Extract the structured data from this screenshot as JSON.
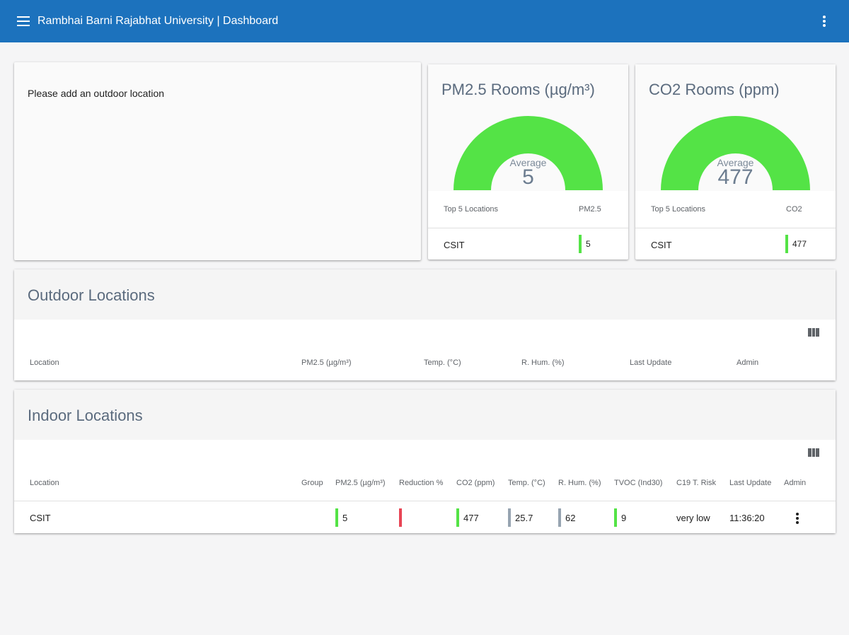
{
  "appbar": {
    "title": "Rambhai Barni Rajabhat University | Dashboard",
    "menu_icon": "hamburger-menu-icon",
    "more_icon": "more-vert-icon"
  },
  "outdoor_notice": {
    "message": "Please add an outdoor location"
  },
  "gauges": {
    "pm25": {
      "title": "PM2.5 Rooms (µg/m³)",
      "avg_label": "Average",
      "avg_value": "5",
      "top_label": "Top 5 Locations",
      "metric_label": "PM2.5",
      "rows": [
        {
          "location": "CSIT",
          "value": "5"
        }
      ],
      "color": "#54e346"
    },
    "co2": {
      "title": "CO2 Rooms (ppm)",
      "avg_label": "Average",
      "avg_value": "477",
      "top_label": "Top 5 Locations",
      "metric_label": "CO2",
      "rows": [
        {
          "location": "CSIT",
          "value": "477"
        }
      ],
      "color": "#54e346"
    }
  },
  "outdoor_section": {
    "title": "Outdoor Locations",
    "columns_icon": "view-column-icon",
    "columns": [
      "Location",
      "PM2.5 (µg/m³)",
      "Temp. (°C)",
      "R. Hum. (%)",
      "Last Update",
      "Admin"
    ]
  },
  "indoor_section": {
    "title": "Indoor Locations",
    "columns_icon": "view-column-icon",
    "columns": [
      "Location",
      "Group",
      "PM2.5 (µg/m³)",
      "Reduction %",
      "CO2 (ppm)",
      "Temp. (°C)",
      "R. Hum. (%)",
      "TVOC (Ind30)",
      "C19 T. Risk",
      "Last Update",
      "Admin"
    ],
    "rows": [
      {
        "location": "CSIT",
        "group": "",
        "pm25": "5",
        "reduction": "",
        "co2": "477",
        "temp": "25.7",
        "hum": "62",
        "tvoc": "9",
        "risk": "very low",
        "last_update": "11:36:20",
        "admin_icon": "more-vert-icon"
      }
    ]
  },
  "colors": {
    "appbar": "#1c72bd",
    "good": "#54e346",
    "bad": "#e84555",
    "neutral": "#97a4b1",
    "title_text": "#5b6b7e"
  }
}
